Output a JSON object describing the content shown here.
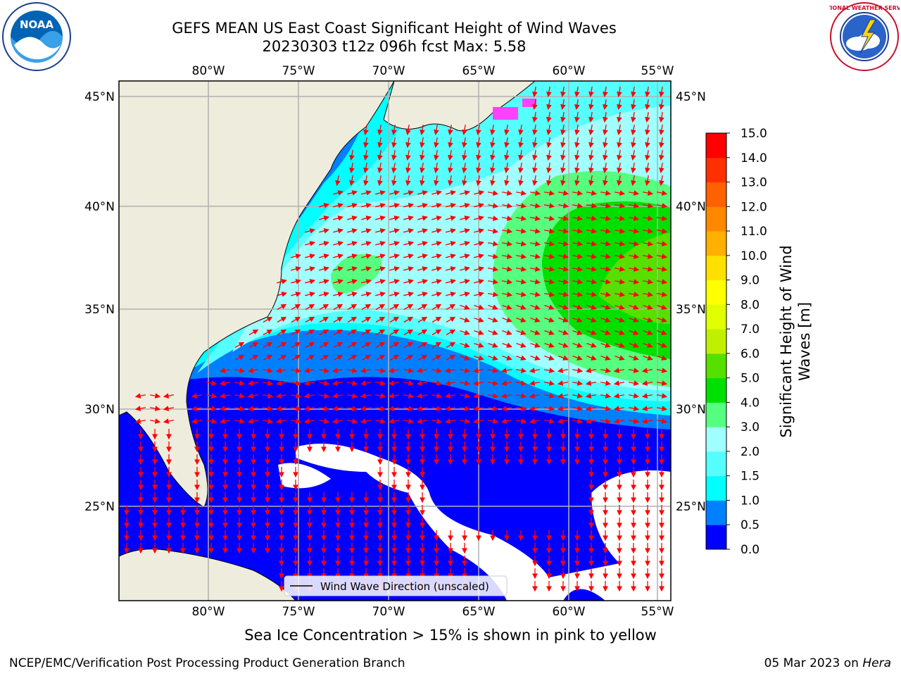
{
  "header": {
    "title_line1": "GEFS MEAN US East Coast Significant Height of Wind Waves",
    "title_line2": "20230303 t12z 096h fcst   Max: 5.58"
  },
  "logos": {
    "left": {
      "icon": "noaa-logo-icon",
      "label": "NOAA"
    },
    "right": {
      "icon": "nws-logo-icon",
      "label": "NATIONAL WEATHER SERVICE"
    }
  },
  "map": {
    "lon_labels": [
      "80°W",
      "75°W",
      "70°W",
      "65°W",
      "60°W",
      "55°W"
    ],
    "lat_labels": [
      "45°N",
      "40°N",
      "35°N",
      "30°N",
      "25°N"
    ],
    "legend_label": "Wind Wave Direction (unscaled)",
    "colors": {
      "land": "#eeecdc",
      "no_data": "#ffffff",
      "arrow": "#ff0000",
      "grid": "#b0b0b0"
    }
  },
  "colorbar": {
    "label_line1": "Significant Height of Wind",
    "label_line2": "Waves [m]",
    "ticks": [
      "0.0",
      "0.5",
      "1.0",
      "1.5",
      "2.0",
      "3.0",
      "4.0",
      "5.0",
      "6.0",
      "7.0",
      "8.0",
      "9.0",
      "10.0",
      "11.0",
      "12.0",
      "13.0",
      "14.0",
      "15.0"
    ],
    "colors": [
      "#0000ff",
      "#0080ff",
      "#00ffff",
      "#55ffff",
      "#a0ffff",
      "#55ff7f",
      "#00e000",
      "#55e000",
      "#c0f000",
      "#e0ff00",
      "#ffff00",
      "#ffe000",
      "#ffb000",
      "#ff8800",
      "#ff6000",
      "#ff3000",
      "#ff0000"
    ]
  },
  "footer": {
    "note": "Sea Ice Concentration > 15% is shown in pink to yellow",
    "credit_left": "NCEP/EMC/Verification Post Processing Product Generation Branch",
    "credit_right_date": "05 Mar 2023 on ",
    "credit_right_host": "Hera"
  }
}
